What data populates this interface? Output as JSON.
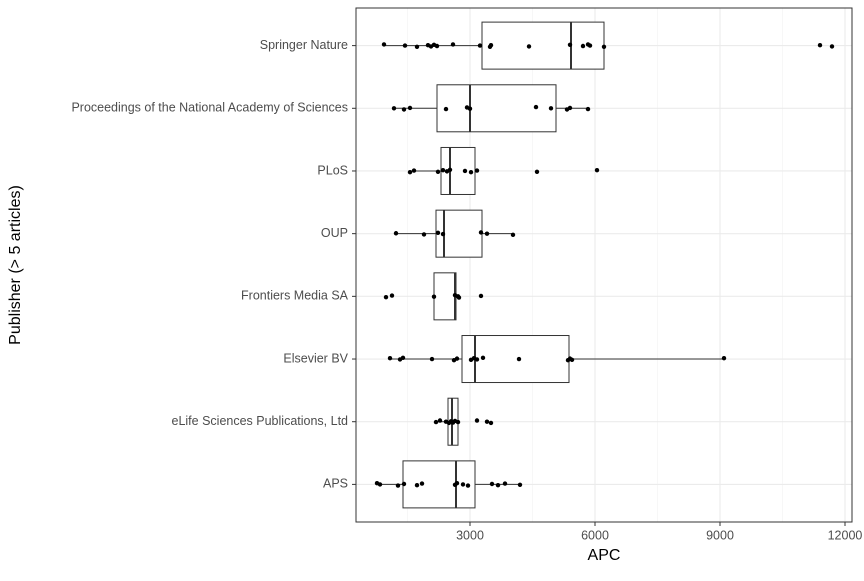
{
  "chart_data": {
    "type": "boxplot",
    "x_label": "APC",
    "y_label": "Publisher (> 5 articles)",
    "categories": [
      "Springer Nature",
      "Proceedings of the National Academy of Sciences",
      "PLoS",
      "OUP",
      "Frontiers Media SA",
      "Elsevier BV",
      "eLife Sciences Publications, Ltd",
      "APS"
    ],
    "stats": [
      {
        "min": 936,
        "q1": 3288,
        "median": 5424,
        "q3": 6216,
        "max": 6216
      },
      {
        "min": 1176,
        "q1": 2208,
        "median": 3000,
        "q3": 5064,
        "max": 5832
      },
      {
        "min": 1560,
        "q1": 2304,
        "median": 2520,
        "q3": 3120,
        "max": 3168
      },
      {
        "min": 1224,
        "q1": 2184,
        "median": 2376,
        "q3": 3288,
        "max": 4032
      },
      {
        "min": 2136,
        "q1": 2136,
        "median": 2640,
        "q3": 2664,
        "max": 2736
      },
      {
        "min": 1080,
        "q1": 2808,
        "median": 3120,
        "q3": 5376,
        "max": 9096
      },
      {
        "min": 2184,
        "q1": 2472,
        "median": 2568,
        "q3": 2712,
        "max": 2712
      },
      {
        "min": 768,
        "q1": 1392,
        "median": 2664,
        "q3": 3120,
        "max": 4200
      }
    ],
    "points": [
      [
        936,
        1440,
        1728,
        1992,
        2064,
        2136,
        2208,
        2592,
        3240,
        3480,
        3504,
        4416,
        5400,
        5712,
        5832,
        5880,
        6216,
        11400,
        11688
      ],
      [
        1176,
        1416,
        1560,
        2424,
        2928,
        3000,
        4584,
        4944,
        5328,
        5400,
        5832
      ],
      [
        1560,
        1656,
        2232,
        2352,
        2448,
        2520,
        2880,
        3024,
        3168,
        4608,
        6048
      ],
      [
        1224,
        1896,
        2232,
        2352,
        3264,
        3408,
        4032
      ],
      [
        984,
        1128,
        2136,
        2640,
        2712,
        2736,
        3264
      ],
      [
        1080,
        1320,
        1392,
        2088,
        2616,
        2688,
        3024,
        3096,
        3168,
        3312,
        4176,
        5352,
        5400,
        5448,
        9096
      ],
      [
        2184,
        2280,
        2424,
        2496,
        2544,
        2592,
        2640,
        2712,
        3168,
        3408,
        3504
      ],
      [
        768,
        840,
        1272,
        1416,
        1728,
        1848,
        2640,
        2688,
        2832,
        2952,
        3528,
        3672,
        3840,
        4200
      ]
    ],
    "xlim": [
      264,
      12168
    ],
    "xticks": [
      3000,
      6000,
      9000,
      12000
    ],
    "minor_grid": [
      1500,
      4500,
      7500,
      10500
    ],
    "grid": true
  }
}
